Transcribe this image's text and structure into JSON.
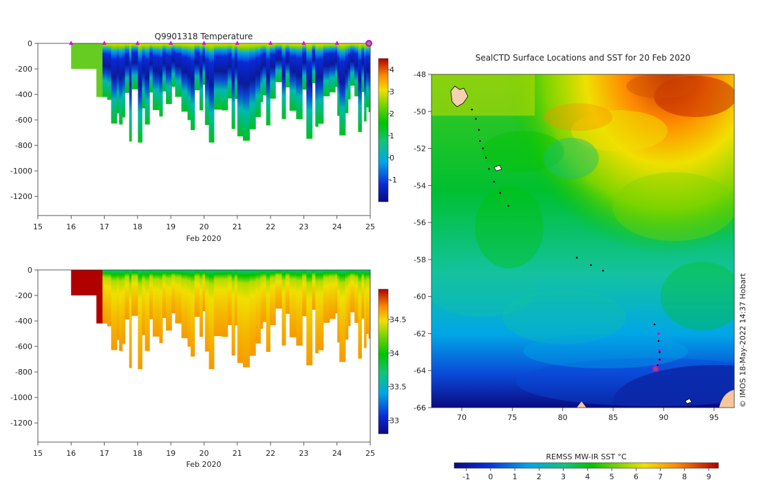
{
  "chart_data": [
    {
      "type": "heatmap",
      "title": "Q9901318  Temperature",
      "xlabel": "Feb 2020",
      "ylabel": "",
      "xlim": [
        15,
        25
      ],
      "ylim": [
        -1350,
        0
      ],
      "x_ticks": [
        "15",
        "16",
        "17",
        "18",
        "19",
        "20",
        "21",
        "22",
        "23",
        "24",
        "25"
      ],
      "y_ticks": [
        "0",
        "-200",
        "-400",
        "-600",
        "-800",
        "-1000",
        "-1200"
      ],
      "colorbar": {
        "range": [
          -2,
          4.5
        ],
        "ticks": [
          "-1",
          "0",
          "1",
          "2",
          "3",
          "4"
        ]
      },
      "profile_markers": [
        16,
        17,
        18,
        19,
        20,
        21,
        22,
        23,
        24
      ],
      "current_marker": 25
    },
    {
      "type": "heatmap",
      "title": "",
      "xlabel": "Feb 2020",
      "ylabel": "",
      "xlim": [
        15,
        25
      ],
      "ylim": [
        -1350,
        0
      ],
      "x_ticks": [
        "15",
        "16",
        "17",
        "18",
        "19",
        "20",
        "21",
        "22",
        "23",
        "24",
        "25"
      ],
      "y_ticks": [
        "0",
        "-200",
        "-400",
        "-600",
        "-800",
        "-1000",
        "-1200"
      ],
      "colorbar": {
        "range": [
          32.8,
          34.95
        ],
        "ticks": [
          "33",
          "33.5",
          "34",
          "34.5"
        ]
      }
    },
    {
      "type": "heatmap",
      "title": "SealCTD Surface Locations and SST for 20 Feb 2020",
      "xlabel": "",
      "ylabel": "",
      "xlim": [
        67,
        97
      ],
      "ylim": [
        -66,
        -48
      ],
      "x_ticks": [
        "70",
        "75",
        "80",
        "85",
        "90",
        "95"
      ],
      "y_ticks": [
        "-48",
        "-50",
        "-52",
        "-54",
        "-56",
        "-58",
        "-60",
        "-62",
        "-64",
        "-66"
      ],
      "colorbar": {
        "label": "REMSS MW-IR SST °C",
        "range": [
          -1.5,
          9.4
        ],
        "ticks": [
          "-1",
          "0",
          "1",
          "2",
          "3",
          "4",
          "5",
          "6",
          "7",
          "8",
          "9"
        ]
      },
      "track": [
        [
          71,
          -49.9
        ],
        [
          71.4,
          -50.4
        ],
        [
          71.7,
          -51.0
        ],
        [
          71.8,
          -51.6
        ],
        [
          72.1,
          -52.0
        ],
        [
          72.4,
          -52.5
        ],
        [
          72.7,
          -53.1
        ],
        [
          73.2,
          -53.8
        ],
        [
          73.8,
          -54.4
        ],
        [
          74.6,
          -55.1
        ],
        [
          81.4,
          -57.9
        ],
        [
          82.8,
          -58.3
        ],
        [
          84,
          -58.6
        ],
        [
          89.1,
          -61.5
        ],
        [
          89.5,
          -62.4
        ],
        [
          89.6,
          -63.0
        ],
        [
          89.6,
          -63.4
        ],
        [
          89.4,
          -63.7
        ]
      ],
      "latest_position": [
        89.2,
        -63.9
      ]
    }
  ],
  "credit": "© IMOS 18-May-2022 14:37 Hobart"
}
